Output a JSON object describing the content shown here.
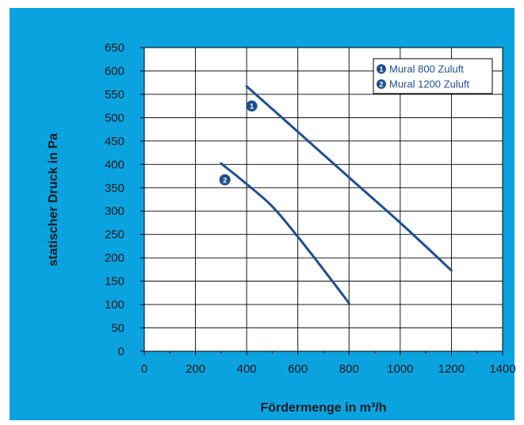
{
  "chart_data": {
    "type": "line",
    "xlabel": "Fördermenge in m³/h",
    "ylabel": "statischer Druck in Pa",
    "xlim": [
      0,
      1400
    ],
    "ylim": [
      0,
      650
    ],
    "xticks": [
      0,
      200,
      400,
      600,
      800,
      1000,
      1200,
      1400
    ],
    "yticks": [
      0,
      50,
      100,
      150,
      200,
      250,
      300,
      350,
      400,
      450,
      500,
      550,
      600,
      650
    ],
    "grid": true,
    "legend_position": "top-right",
    "series": [
      {
        "marker": "1",
        "name": "Mural 800 Zuluft",
        "x": [
          400,
          600,
          800,
          1000,
          1200
        ],
        "y": [
          567,
          470,
          372,
          275,
          173
        ]
      },
      {
        "marker": "2",
        "name": "Mural 1200 Zuluft",
        "x": [
          300,
          400,
          500,
          600,
          700,
          800
        ],
        "y": [
          402,
          358,
          310,
          245,
          175,
          103
        ]
      }
    ],
    "annotations": [
      {
        "label": "1",
        "x": 420,
        "y": 525
      },
      {
        "label": "2",
        "x": 315,
        "y": 367
      }
    ]
  },
  "colors": {
    "background": "#0aa3e0",
    "plot_area": "#ffffff",
    "line": "#1f4e8c",
    "grid": "#000000"
  }
}
